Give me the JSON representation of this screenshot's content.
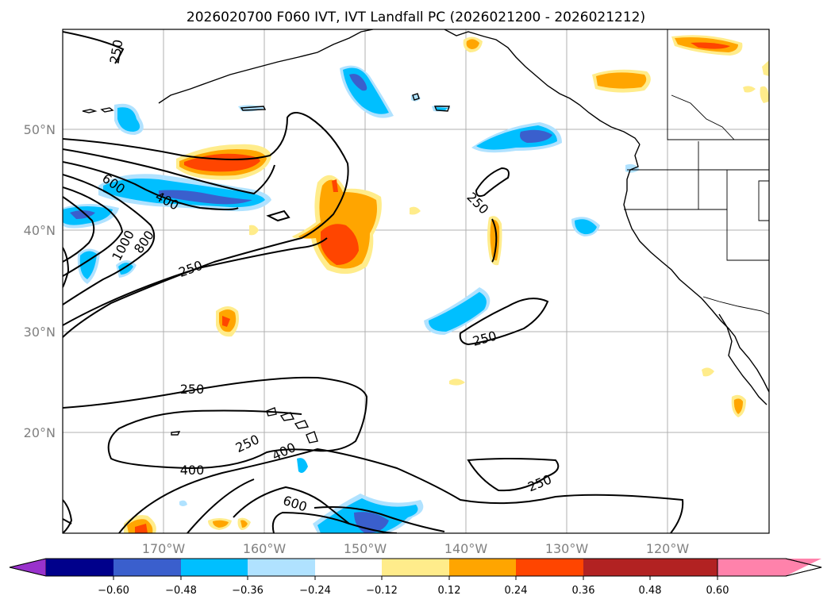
{
  "title": "2026020700 F060 IVT, IVT Landfall PC (2026021200 - 2026021212)",
  "map": {
    "lon_range": [
      -180,
      -110
    ],
    "lat_range": [
      10,
      60
    ],
    "lat_ticks": [
      {
        "lat": 50,
        "label": "50°N"
      },
      {
        "lat": 40,
        "label": "40°N"
      },
      {
        "lat": 30,
        "label": "30°N"
      },
      {
        "lat": 20,
        "label": "20°N"
      }
    ],
    "lon_ticks": [
      {
        "lon": -170,
        "label": "170°W"
      },
      {
        "lon": -160,
        "label": "160°W"
      },
      {
        "lon": -150,
        "label": "150°W"
      },
      {
        "lon": -140,
        "label": "140°W"
      },
      {
        "lon": -130,
        "label": "130°W"
      },
      {
        "lon": -120,
        "label": "120°W"
      }
    ],
    "contour_labels": [
      "250",
      "250",
      "600",
      "400",
      "1000",
      "800",
      "250",
      "250",
      "250",
      "250",
      "400",
      "400",
      "250",
      "600",
      "250"
    ]
  },
  "colorbar": {
    "colors": [
      "#9932cc",
      "#00008b",
      "#3a5fcd",
      "#00bfff",
      "#b0e2ff",
      "#ffffff",
      "#ffec8b",
      "#ffa500",
      "#ff4500",
      "#b22222",
      "#ff82ab"
    ],
    "ticks": [
      "−0.60",
      "−0.48",
      "−0.36",
      "−0.24",
      "−0.12",
      "0.12",
      "0.24",
      "0.36",
      "0.48",
      "0.60"
    ],
    "extend": "both"
  }
}
